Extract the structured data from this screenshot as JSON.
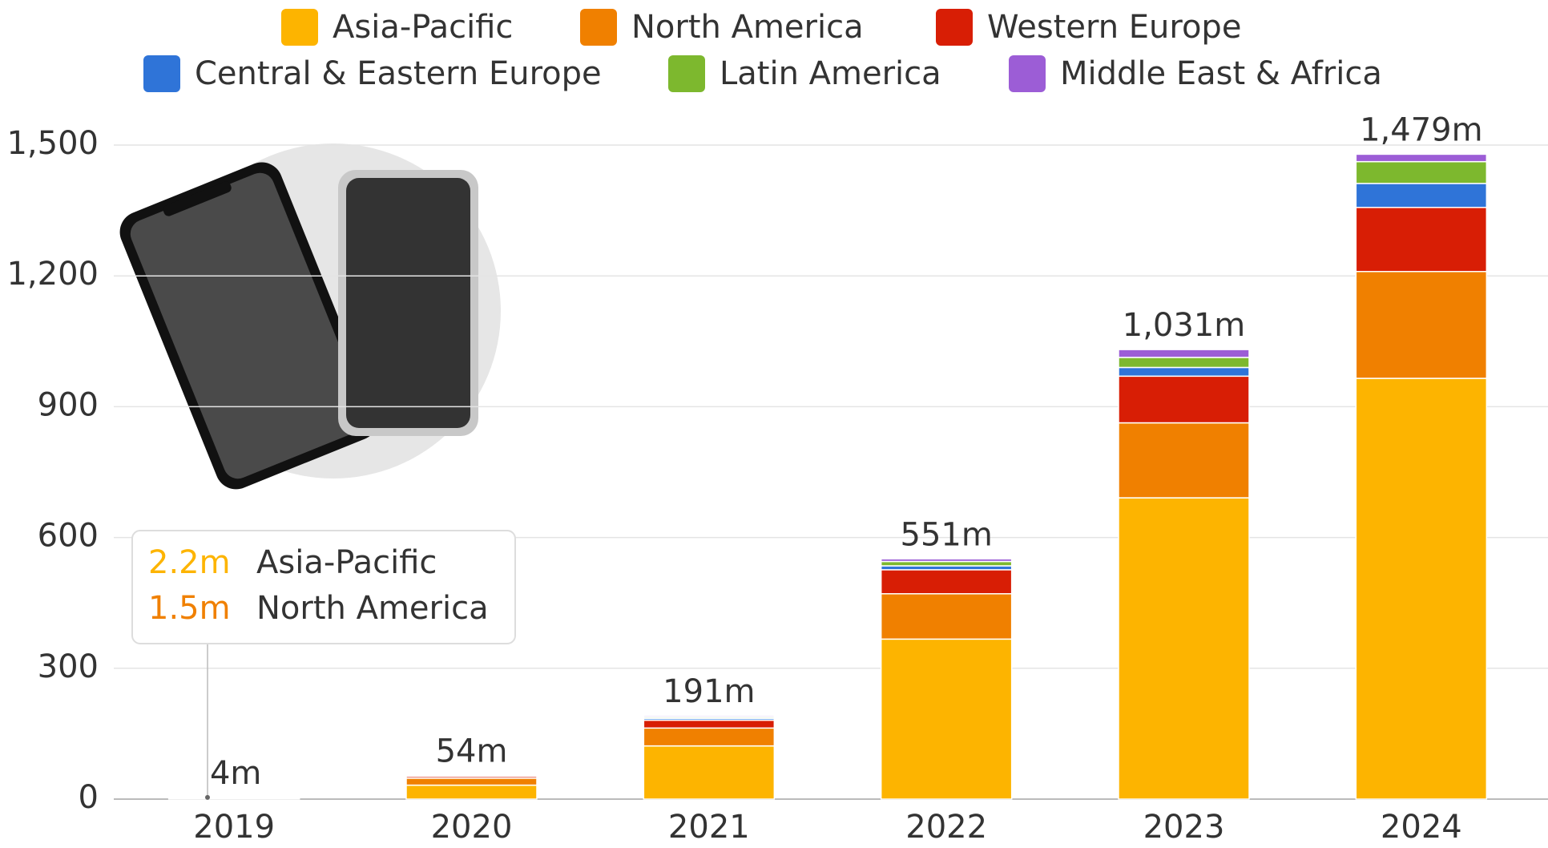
{
  "chart_data": {
    "type": "stacked-bar",
    "categories": [
      "2019",
      "2020",
      "2021",
      "2022",
      "2023",
      "2024"
    ],
    "series": [
      {
        "name": "Asia-Pacific",
        "color": "#fdb400",
        "values": [
          2.2,
          32,
          122,
          367,
          691,
          965
        ],
        "value_labels": [
          "2.2m",
          null,
          null,
          null,
          null,
          null
        ]
      },
      {
        "name": "North America",
        "color": "#f08000",
        "values": [
          1.5,
          16,
          41,
          104,
          172,
          245
        ],
        "value_labels": [
          "1.5m",
          null,
          null,
          null,
          null,
          null
        ]
      },
      {
        "name": "Western Europe",
        "color": "#d81e05",
        "values": [
          0.2,
          4,
          18,
          55,
          107,
          147
        ]
      },
      {
        "name": "Central & Eastern Europe",
        "color": "#2f74d8",
        "values": [
          0.05,
          1,
          4,
          9,
          20,
          55
        ]
      },
      {
        "name": "Latin America",
        "color": "#7db82e",
        "values": [
          0.03,
          0.5,
          3,
          10,
          23,
          50
        ]
      },
      {
        "name": "Middle East & Africa",
        "color": "#9c5dd6",
        "values": [
          0.02,
          0.5,
          3,
          6,
          18,
          17
        ]
      }
    ],
    "totals": [
      4,
      54,
      191,
      551,
      1031,
      1479
    ],
    "total_labels": [
      "4m",
      "54m",
      "191m",
      "551m",
      "1,031m",
      "1,479m"
    ],
    "ylim": [
      0,
      1500
    ],
    "yticks": [
      0,
      300,
      600,
      900,
      {
        "value": 1200,
        "label": "1,200"
      },
      {
        "value": 1500,
        "label": "1,500"
      }
    ],
    "grid": true
  }
}
